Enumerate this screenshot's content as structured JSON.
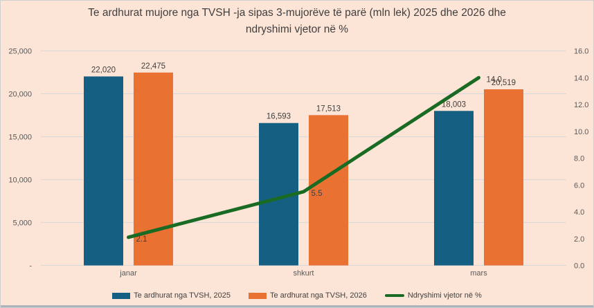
{
  "window": {
    "background_color": "#fce4d6",
    "border_color": "#cfcfcf",
    "bottom_edge_color": "#aab4ba"
  },
  "chart_data": {
    "type": "combo-bar-line",
    "title": "Te ardhurat mujore nga TVSH -ja sipas 3-mujorëve të parë (mln lek) 2025 dhe 2026 dhe ndryshimi vjetor në %",
    "title_lines": [
      "Te ardhurat mujore nga TVSH -ja sipas 3-mujorëve të parë (mln lek) 2025 dhe 2026 dhe",
      "ndryshimi vjetor në %"
    ],
    "categories": [
      "janar",
      "shkurt",
      "mars"
    ],
    "series": [
      {
        "name": "Te ardhurat nga TVSH, 2025",
        "type": "bar",
        "axis": "left",
        "color": "#156082",
        "values": [
          22020,
          16593,
          18003
        ],
        "labels": [
          "22,020",
          "16,593",
          "18,003"
        ]
      },
      {
        "name": "Te ardhurat nga TVSH, 2026",
        "type": "bar",
        "axis": "left",
        "color": "#e97132",
        "values": [
          22475,
          17513,
          20519
        ],
        "labels": [
          "22,475",
          "17,513",
          "20,519"
        ]
      },
      {
        "name": "Ndryshimi vjetor në %",
        "type": "line",
        "axis": "right",
        "color": "#196b24",
        "values": [
          2.1,
          5.5,
          14.0
        ],
        "labels": [
          "2.1",
          "5.5",
          "14.0"
        ]
      }
    ],
    "left_axis": {
      "min": 0,
      "max": 25000,
      "step": 5000,
      "tick_labels": [
        "-",
        "5,000",
        "10,000",
        "15,000",
        "20,000",
        "25,000"
      ]
    },
    "right_axis": {
      "min": 0,
      "max": 16,
      "step": 2,
      "tick_labels": [
        "0.0",
        "2.0",
        "4.0",
        "6.0",
        "8.0",
        "10.0",
        "12.0",
        "14.0",
        "16.0"
      ]
    },
    "grid": true,
    "legend_position": "bottom",
    "gridline_color": "#d9d9d9",
    "text_colors": {
      "title": "#3f3f3f",
      "axis_ticks": "#595959",
      "data_labels": "#404040"
    }
  }
}
